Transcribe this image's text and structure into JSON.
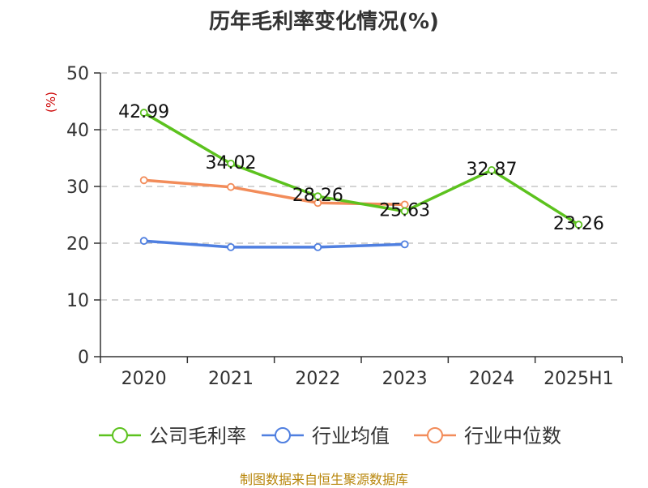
{
  "chart_data": {
    "type": "line",
    "title": "历年毛利率变化情况(%)",
    "unit_label": "(%)",
    "categories": [
      "2020",
      "2021",
      "2022",
      "2023",
      "2024",
      "2025H1"
    ],
    "ylim": [
      0,
      50
    ],
    "y_ticks": [
      "0",
      "10",
      "20",
      "30",
      "40",
      "50"
    ],
    "grid": "horizontal dashed",
    "legend_position": "bottom",
    "series": [
      {
        "name": "公司毛利率",
        "color": "#5cc21e",
        "values": [
          42.99,
          34.02,
          28.26,
          25.63,
          32.87,
          23.26
        ],
        "labels": [
          "42.99",
          "34.02",
          "28.26",
          "25.63",
          "32.87",
          "23.26"
        ]
      },
      {
        "name": "行业均值",
        "color": "#4f7fe0",
        "values": [
          20.4,
          19.3,
          19.3,
          19.8,
          null,
          null
        ]
      },
      {
        "name": "行业中位数",
        "color": "#f28c5a",
        "values": [
          31.1,
          29.9,
          27.1,
          26.8,
          null,
          null
        ]
      }
    ]
  },
  "source_note": "制图数据来自恒生聚源数据库"
}
